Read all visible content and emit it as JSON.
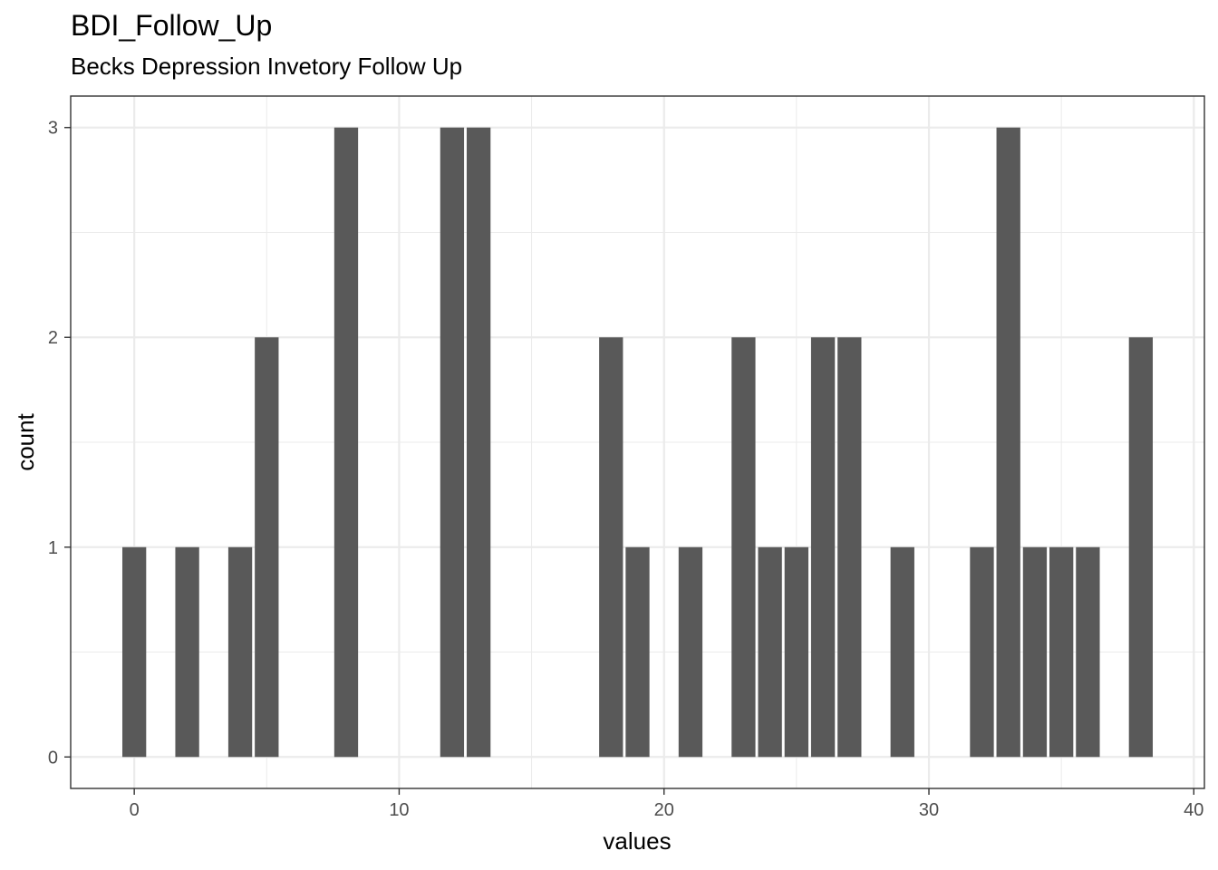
{
  "chart_data": {
    "type": "bar",
    "title": "BDI_Follow_Up",
    "subtitle": "Becks Depression Invetory Follow Up",
    "xlabel": "values",
    "ylabel": "count",
    "xlim": [
      -2.4,
      40.4
    ],
    "ylim": [
      -0.15,
      3.15
    ],
    "x_ticks": [
      0,
      10,
      20,
      30,
      40
    ],
    "y_ticks": [
      0,
      1,
      2,
      3
    ],
    "grid": true,
    "bar_color": "#595959",
    "x": [
      0,
      2,
      4,
      5,
      8,
      12,
      13,
      18,
      19,
      21,
      23,
      24,
      25,
      26,
      27,
      29,
      32,
      33,
      34,
      35,
      36,
      38
    ],
    "values": [
      1,
      1,
      1,
      2,
      3,
      3,
      3,
      2,
      1,
      1,
      2,
      1,
      1,
      2,
      2,
      1,
      1,
      3,
      1,
      1,
      1,
      2
    ]
  }
}
